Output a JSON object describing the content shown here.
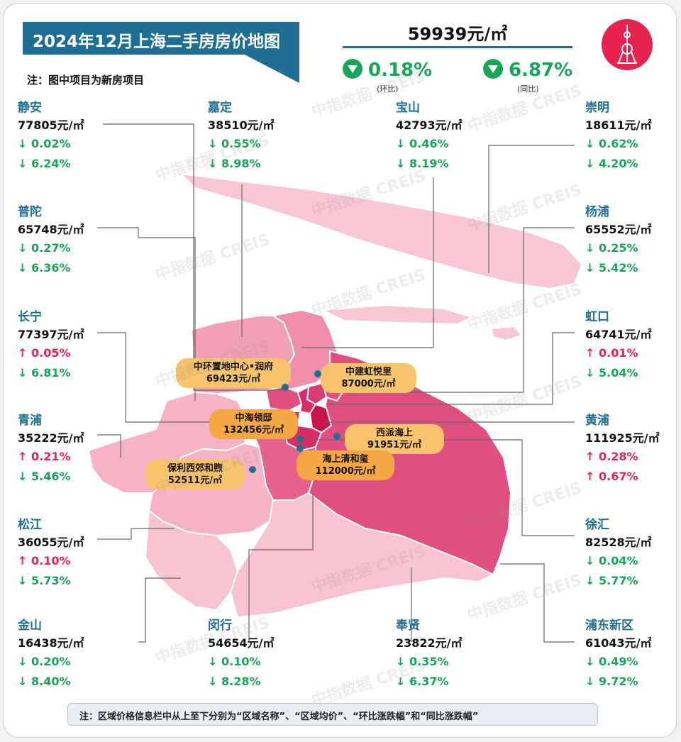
{
  "header": {
    "title": "2024年12月上海二手房房价地图",
    "note": "注：图中项目为新房项目"
  },
  "overall": {
    "price": "59939元/㎡",
    "mom": "0.18%",
    "mom_caption": "(环比)",
    "yoy": "6.87%",
    "yoy_caption": "(同比)"
  },
  "watermark_text": "中指数据 CREIS",
  "icons": {
    "logo": "oriental-pearl-tower-icon",
    "down": "down-triangle-icon"
  },
  "colors": {
    "title": "#1f6f93",
    "down": "#18a558",
    "up": "#e8225a",
    "logo": "#e8224f"
  },
  "districts": [
    {
      "name": "静安",
      "price": "77805元/㎡",
      "mom": "↓ 0.02%",
      "mom_dir": "down",
      "yoy": "↓ 6.24%",
      "yoy_dir": "down"
    },
    {
      "name": "普陀",
      "price": "65748元/㎡",
      "mom": "↓ 0.27%",
      "mom_dir": "down",
      "yoy": "↓ 6.36%",
      "yoy_dir": "down"
    },
    {
      "name": "长宁",
      "price": "77397元/㎡",
      "mom": "↑ 0.05%",
      "mom_dir": "up",
      "yoy": "↓ 6.81%",
      "yoy_dir": "down"
    },
    {
      "name": "青浦",
      "price": "35222元/㎡",
      "mom": "↑ 0.21%",
      "mom_dir": "up",
      "yoy": "↓ 5.46%",
      "yoy_dir": "down"
    },
    {
      "name": "松江",
      "price": "36055元/㎡",
      "mom": "↑ 0.10%",
      "mom_dir": "up",
      "yoy": "↓ 5.73%",
      "yoy_dir": "down"
    },
    {
      "name": "金山",
      "price": "16438元/㎡",
      "mom": "↓ 0.20%",
      "mom_dir": "down",
      "yoy": "↓ 8.40%",
      "yoy_dir": "down"
    },
    {
      "name": "嘉定",
      "price": "38510元/㎡",
      "mom": "↓ 0.55%",
      "mom_dir": "down",
      "yoy": "↓ 8.98%",
      "yoy_dir": "down"
    },
    {
      "name": "闵行",
      "price": "54654元/㎡",
      "mom": "↓ 0.10%",
      "mom_dir": "down",
      "yoy": "↓ 8.28%",
      "yoy_dir": "down"
    },
    {
      "name": "宝山",
      "price": "42793元/㎡",
      "mom": "↓ 0.46%",
      "mom_dir": "down",
      "yoy": "↓ 8.19%",
      "yoy_dir": "down"
    },
    {
      "name": "奉贤",
      "price": "23822元/㎡",
      "mom": "↓ 0.35%",
      "mom_dir": "down",
      "yoy": "↓ 6.37%",
      "yoy_dir": "down"
    },
    {
      "name": "崇明",
      "price": "18611元/㎡",
      "mom": "↓ 0.62%",
      "mom_dir": "down",
      "yoy": "↓ 4.20%",
      "yoy_dir": "down"
    },
    {
      "name": "杨浦",
      "price": "65552元/㎡",
      "mom": "↓ 0.25%",
      "mom_dir": "down",
      "yoy": "↓ 5.42%",
      "yoy_dir": "down"
    },
    {
      "name": "虹口",
      "price": "64741元/㎡",
      "mom": "↑ 0.01%",
      "mom_dir": "up",
      "yoy": "↓ 5.04%",
      "yoy_dir": "down"
    },
    {
      "name": "黄浦",
      "price": "111925元/㎡",
      "mom": "↑ 0.28%",
      "mom_dir": "up",
      "yoy": "↑ 0.67%",
      "yoy_dir": "up"
    },
    {
      "name": "徐汇",
      "price": "82528元/㎡",
      "mom": "↓ 0.04%",
      "mom_dir": "down",
      "yoy": "↓ 5.77%",
      "yoy_dir": "down"
    },
    {
      "name": "浦东新区",
      "price": "61043元/㎡",
      "mom": "↓ 0.49%",
      "mom_dir": "down",
      "yoy": "↓ 9.72%",
      "yoy_dir": "down"
    }
  ],
  "projects": [
    {
      "name": "中环置地中心•润府",
      "price": "69423元/㎡"
    },
    {
      "name": "中建虹悦里",
      "price": "87000元/㎡"
    },
    {
      "name": "中海领邸",
      "price": "132456元/㎡"
    },
    {
      "name": "西派海上",
      "price": "91951元/㎡"
    },
    {
      "name": "海上清和玺",
      "price": "112000元/㎡"
    },
    {
      "name": "保利西郊和煦",
      "price": "52511元/㎡"
    }
  ],
  "footer": {
    "note": "注：区域价格信息栏中从上至下分别为“区域名称”、“区域均价”、“环比涨跌幅”和“同比涨跌幅”"
  }
}
